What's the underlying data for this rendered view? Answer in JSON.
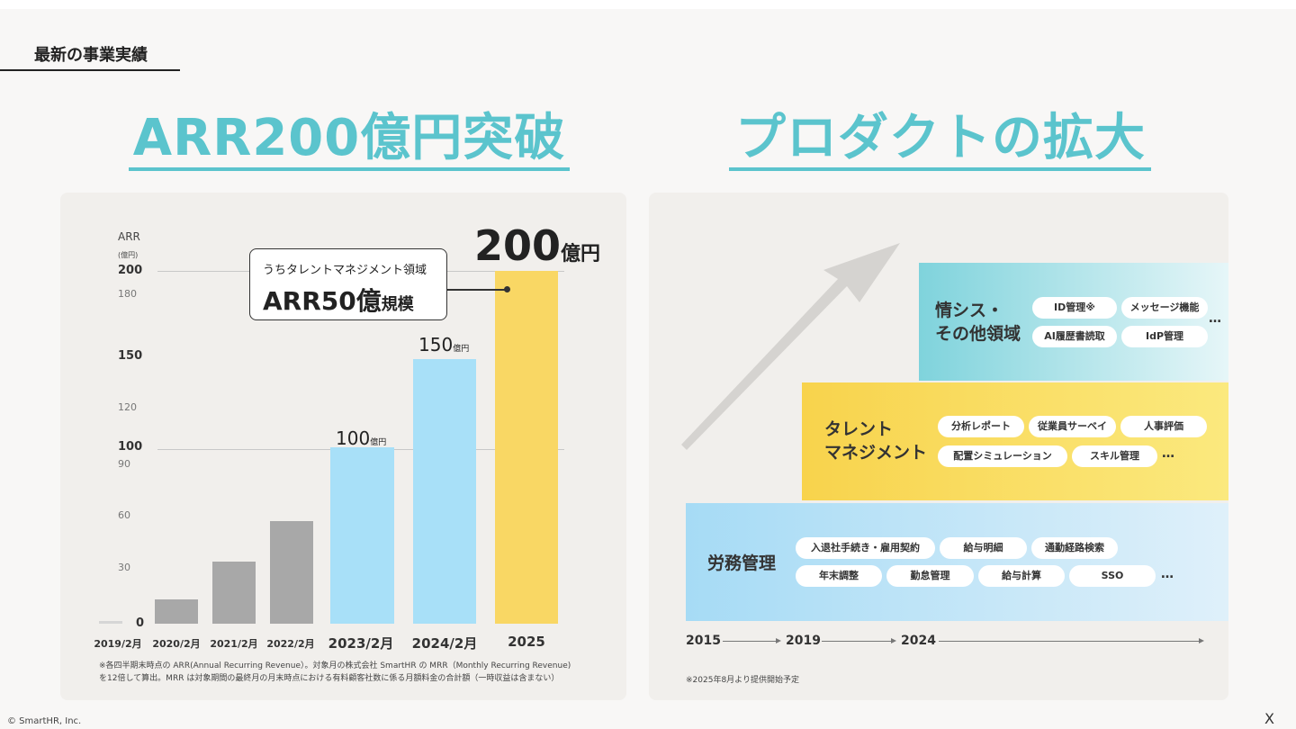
{
  "header": {
    "section_label": "最新の事業実績"
  },
  "left": {
    "headline": "ARR200億円突破",
    "chart_data": {
      "type": "bar",
      "ylabel": "ARR",
      "yunit": "(億円)",
      "categories": [
        "2019/2月",
        "2020/2月",
        "2021/2月",
        "2022/2月",
        "2023/2月",
        "2024/2月",
        "2025"
      ],
      "values": [
        1,
        14,
        35,
        58,
        100,
        150,
        200
      ],
      "ylim": [
        0,
        200
      ],
      "yticks": [
        "200",
        "180",
        "150",
        "120",
        "100",
        "90",
        "60",
        "30",
        "0"
      ],
      "data_labels": {
        "v100": "100",
        "v150": "150",
        "v200": "200",
        "unit_small": "億円"
      },
      "callout": {
        "sub": "うちタレントマネジメント領域",
        "main": "ARR50億",
        "main_suffix": "規模"
      }
    },
    "footnote_1": "※各四半期末時点の ARR(Annual Recurring Revenue）。対象月の株式会社 SmartHR の MRR（Monthly Recurring Revenue)",
    "footnote_2": "を12倍して算出。MRR は対象期間の最終月の月末時点における有料顧客社数に係る月額料金の合計額（一時収益は含まない）"
  },
  "right": {
    "headline": "プロダクトの拡大",
    "tiers": {
      "it": {
        "title_1": "情シス・",
        "title_2": "その他領域",
        "chips": [
          "ID管理※",
          "メッセージ機能",
          "AI履歴書読取",
          "IdP管理"
        ],
        "more": "…",
        "color": "#7fd3dc"
      },
      "talent": {
        "title_1": "タレント",
        "title_2": "マネジメント",
        "chips": [
          "分析レポート",
          "従業員サーベイ",
          "人事評価",
          "配置シミュレーション",
          "スキル管理"
        ],
        "more": "…",
        "color": "#f9d95c"
      },
      "labor": {
        "title": "労務管理",
        "chips": [
          "入退社手続き・雇用契約",
          "給与明細",
          "通勤経路検索",
          "年末調整",
          "勤怠管理",
          "給与計算",
          "SSO"
        ],
        "more": "…",
        "color": "#a8dcf5"
      }
    },
    "timeline": [
      "2015",
      "2019",
      "2024"
    ],
    "footnote": "※2025年8月より提供開始予定"
  },
  "footer": {
    "copyright": "© SmartHR, Inc.",
    "close": "X"
  }
}
